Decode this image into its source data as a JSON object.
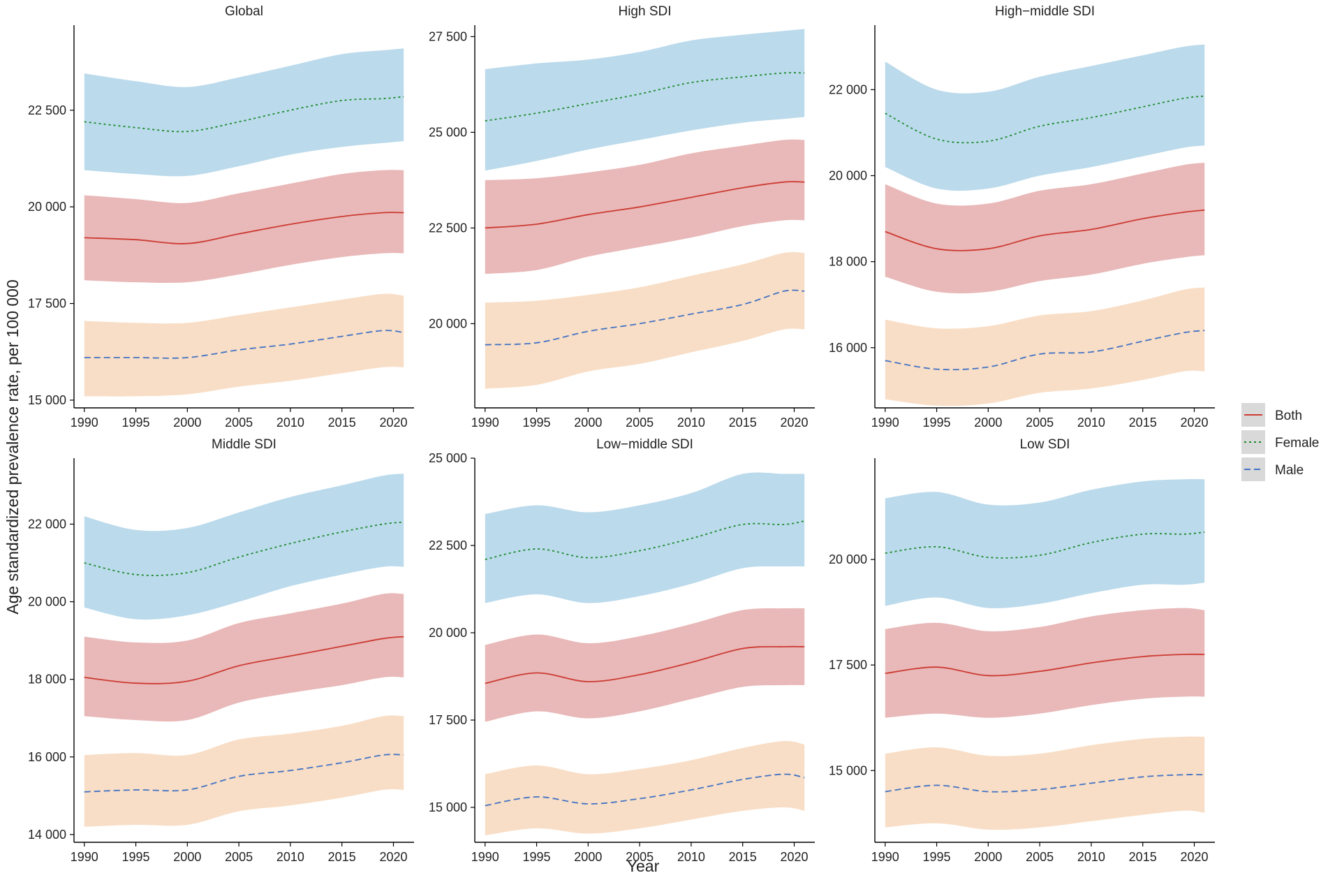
{
  "figure": {
    "y_axis_title": "Age standardized prevalence rate, per 100 000",
    "x_axis_title": "Year"
  },
  "legend": [
    {
      "name": "Both",
      "color": "#cc3b32",
      "dash": "solid"
    },
    {
      "name": "Female",
      "color": "#1a8a2a",
      "dash": "dotted"
    },
    {
      "name": "Male",
      "color": "#4472c4",
      "dash": "dashed"
    }
  ],
  "colors": {
    "both_band": "#e8b4b4",
    "female_band": "#b7d8ea",
    "male_band": "#f8dcc3",
    "axis": "#000000"
  },
  "chart_data": [
    {
      "type": "line",
      "title": "Global",
      "x": [
        1990,
        1995,
        2000,
        2005,
        2010,
        2015,
        2019,
        2021
      ],
      "xticks": [
        1990,
        1995,
        2000,
        2005,
        2010,
        2015,
        2020
      ],
      "xtick_labels": [
        "1990",
        "1995",
        "2000",
        "2005",
        "2010",
        "2015",
        "2020"
      ],
      "xlim": [
        1989,
        2022
      ],
      "ylim": [
        14800,
        24700
      ],
      "yticks": [
        15000,
        17500,
        20000,
        22500
      ],
      "ytick_labels": [
        "15 000",
        "17 500",
        "20 000",
        "22 500"
      ],
      "series": [
        {
          "name": "Female",
          "values": [
            22200,
            22050,
            21950,
            22200,
            22500,
            22750,
            22800,
            22850
          ],
          "lower": [
            20950,
            20850,
            20800,
            21050,
            21350,
            21550,
            21650,
            21700
          ],
          "upper": [
            23450,
            23250,
            23100,
            23350,
            23650,
            23950,
            24050,
            24100
          ]
        },
        {
          "name": "Both",
          "values": [
            19200,
            19150,
            19050,
            19300,
            19550,
            19750,
            19850,
            19850
          ],
          "lower": [
            18100,
            18050,
            18050,
            18250,
            18500,
            18700,
            18800,
            18800
          ],
          "upper": [
            20300,
            20200,
            20100,
            20350,
            20600,
            20850,
            20950,
            20950
          ]
        },
        {
          "name": "Male",
          "values": [
            16100,
            16100,
            16100,
            16300,
            16450,
            16650,
            16800,
            16750
          ],
          "lower": [
            15100,
            15100,
            15150,
            15350,
            15500,
            15700,
            15850,
            15850
          ],
          "upper": [
            17050,
            17000,
            17000,
            17200,
            17400,
            17600,
            17750,
            17700
          ]
        }
      ]
    },
    {
      "type": "line",
      "title": "High SDI",
      "x": [
        1990,
        1995,
        2000,
        2005,
        2010,
        2015,
        2019,
        2021
      ],
      "xticks": [
        1990,
        1995,
        2000,
        2005,
        2010,
        2015,
        2020
      ],
      "xtick_labels": [
        "1990",
        "1995",
        "2000",
        "2005",
        "2010",
        "2015",
        "2020"
      ],
      "xlim": [
        1989,
        2022
      ],
      "ylim": [
        17800,
        27800
      ],
      "yticks": [
        20000,
        22500,
        25000,
        27500
      ],
      "ytick_labels": [
        "20 000",
        "22 500",
        "25 000",
        "27 500"
      ],
      "series": [
        {
          "name": "Female",
          "values": [
            25300,
            25500,
            25750,
            26000,
            26300,
            26450,
            26550,
            26550
          ],
          "lower": [
            24000,
            24250,
            24550,
            24800,
            25050,
            25250,
            25350,
            25400
          ],
          "upper": [
            26650,
            26800,
            26900,
            27100,
            27400,
            27550,
            27650,
            27700
          ]
        },
        {
          "name": "Both",
          "values": [
            22500,
            22600,
            22850,
            23050,
            23300,
            23550,
            23700,
            23700
          ],
          "lower": [
            21300,
            21400,
            21750,
            22000,
            22250,
            22550,
            22700,
            22700
          ],
          "upper": [
            23750,
            23800,
            23950,
            24150,
            24450,
            24650,
            24800,
            24800
          ]
        },
        {
          "name": "Male",
          "values": [
            19450,
            19500,
            19800,
            20000,
            20250,
            20500,
            20850,
            20850
          ],
          "lower": [
            18300,
            18400,
            18750,
            18950,
            19250,
            19550,
            19850,
            19850
          ],
          "upper": [
            20550,
            20600,
            20750,
            20950,
            21250,
            21550,
            21850,
            21850
          ]
        }
      ]
    },
    {
      "type": "line",
      "title": "High−middle SDI",
      "x": [
        1990,
        1995,
        2000,
        2005,
        2010,
        2015,
        2019,
        2021
      ],
      "xticks": [
        1990,
        1995,
        2000,
        2005,
        2010,
        2015,
        2020
      ],
      "xtick_labels": [
        "1990",
        "1995",
        "2000",
        "2005",
        "2010",
        "2015",
        "2020"
      ],
      "xlim": [
        1989,
        2022
      ],
      "ylim": [
        14600,
        23500
      ],
      "yticks": [
        16000,
        18000,
        20000,
        22000
      ],
      "ytick_labels": [
        "16 000",
        "18 000",
        "20 000",
        "22 000"
      ],
      "series": [
        {
          "name": "Female",
          "values": [
            21450,
            20850,
            20800,
            21150,
            21350,
            21600,
            21800,
            21850
          ],
          "lower": [
            20200,
            19700,
            19700,
            20000,
            20200,
            20450,
            20650,
            20700
          ],
          "upper": [
            22650,
            22000,
            21950,
            22300,
            22550,
            22800,
            23000,
            23050
          ]
        },
        {
          "name": "Both",
          "values": [
            18700,
            18300,
            18300,
            18600,
            18750,
            19000,
            19150,
            19200
          ],
          "lower": [
            17650,
            17300,
            17300,
            17550,
            17700,
            17950,
            18100,
            18150
          ],
          "upper": [
            19800,
            19350,
            19350,
            19650,
            19800,
            20050,
            20250,
            20300
          ]
        },
        {
          "name": "Male",
          "values": [
            15700,
            15500,
            15550,
            15850,
            15900,
            16150,
            16350,
            16400
          ],
          "lower": [
            14800,
            14650,
            14700,
            14950,
            15050,
            15250,
            15450,
            15450
          ],
          "upper": [
            16650,
            16450,
            16500,
            16750,
            16850,
            17100,
            17350,
            17400
          ]
        }
      ]
    },
    {
      "type": "line",
      "title": "Middle SDI",
      "x": [
        1990,
        1995,
        2000,
        2005,
        2010,
        2015,
        2019,
        2021
      ],
      "xticks": [
        1990,
        1995,
        2000,
        2005,
        2010,
        2015,
        2020
      ],
      "xtick_labels": [
        "1990",
        "1995",
        "2000",
        "2005",
        "2010",
        "2015",
        "2020"
      ],
      "xlim": [
        1989,
        2022
      ],
      "ylim": [
        13800,
        23700
      ],
      "yticks": [
        14000,
        16000,
        18000,
        20000,
        22000
      ],
      "ytick_labels": [
        "14 000",
        "16 000",
        "18 000",
        "20 000",
        "22 000"
      ],
      "series": [
        {
          "name": "Female",
          "values": [
            21000,
            20700,
            20750,
            21150,
            21500,
            21800,
            22000,
            22050
          ],
          "lower": [
            19850,
            19550,
            19650,
            20000,
            20400,
            20700,
            20900,
            20900
          ],
          "upper": [
            22200,
            21850,
            21900,
            22300,
            22700,
            23000,
            23250,
            23300
          ]
        },
        {
          "name": "Both",
          "values": [
            18050,
            17900,
            17950,
            18350,
            18600,
            18850,
            19050,
            19100
          ],
          "lower": [
            17050,
            16950,
            16950,
            17400,
            17650,
            17850,
            18050,
            18050
          ],
          "upper": [
            19100,
            18950,
            19000,
            19450,
            19700,
            19950,
            20200,
            20200
          ]
        },
        {
          "name": "Male",
          "values": [
            15100,
            15150,
            15150,
            15500,
            15650,
            15850,
            16050,
            16050
          ],
          "lower": [
            14200,
            14250,
            14250,
            14600,
            14750,
            14950,
            15150,
            15150
          ],
          "upper": [
            16050,
            16100,
            16050,
            16450,
            16600,
            16800,
            17050,
            17050
          ]
        }
      ]
    },
    {
      "type": "line",
      "title": "Low−middle SDI",
      "x": [
        1990,
        1995,
        2000,
        2005,
        2010,
        2015,
        2019,
        2021
      ],
      "xticks": [
        1990,
        1995,
        2000,
        2005,
        2010,
        2015,
        2020
      ],
      "xtick_labels": [
        "1990",
        "1995",
        "2000",
        "2005",
        "2010",
        "2015",
        "2020"
      ],
      "xlim": [
        1989,
        2022
      ],
      "ylim": [
        14000,
        25000
      ],
      "yticks": [
        15000,
        17500,
        20000,
        22500,
        25000
      ],
      "ytick_labels": [
        "15 000",
        "17 500",
        "20 000",
        "22 500",
        "25 000"
      ],
      "series": [
        {
          "name": "Female",
          "values": [
            22100,
            22400,
            22150,
            22350,
            22700,
            23100,
            23100,
            23200
          ],
          "lower": [
            20850,
            21100,
            20850,
            21050,
            21400,
            21850,
            21900,
            21900
          ],
          "upper": [
            23400,
            23650,
            23450,
            23650,
            24000,
            24550,
            24550,
            24550
          ]
        },
        {
          "name": "Both",
          "values": [
            18550,
            18850,
            18600,
            18800,
            19150,
            19550,
            19600,
            19600
          ],
          "lower": [
            17450,
            17750,
            17550,
            17750,
            18100,
            18450,
            18500,
            18500
          ],
          "upper": [
            19650,
            19950,
            19700,
            19900,
            20250,
            20650,
            20700,
            20700
          ]
        },
        {
          "name": "Male",
          "values": [
            15050,
            15300,
            15100,
            15250,
            15500,
            15800,
            15950,
            15850
          ],
          "lower": [
            14200,
            14400,
            14250,
            14400,
            14650,
            14900,
            15000,
            14900
          ],
          "upper": [
            15950,
            16200,
            15950,
            16100,
            16350,
            16700,
            16900,
            16800
          ]
        }
      ]
    },
    {
      "type": "line",
      "title": "Low SDI",
      "x": [
        1990,
        1995,
        2000,
        2005,
        2010,
        2015,
        2019,
        2021
      ],
      "xticks": [
        1990,
        1995,
        2000,
        2005,
        2010,
        2015,
        2020
      ],
      "xtick_labels": [
        "1990",
        "1995",
        "2000",
        "2005",
        "2010",
        "2015",
        "2020"
      ],
      "xlim": [
        1989,
        2022
      ],
      "ylim": [
        13300,
        22400
      ],
      "yticks": [
        15000,
        17500,
        20000
      ],
      "ytick_labels": [
        "15 000",
        "17 500",
        "20 000"
      ],
      "series": [
        {
          "name": "Female",
          "values": [
            20150,
            20300,
            20050,
            20100,
            20400,
            20600,
            20600,
            20650
          ],
          "lower": [
            18900,
            19100,
            18850,
            18950,
            19200,
            19400,
            19400,
            19450
          ],
          "upper": [
            21450,
            21600,
            21300,
            21350,
            21650,
            21850,
            21900,
            21900
          ]
        },
        {
          "name": "Both",
          "values": [
            17300,
            17450,
            17250,
            17350,
            17550,
            17700,
            17750,
            17750
          ],
          "lower": [
            16250,
            16350,
            16250,
            16350,
            16550,
            16700,
            16750,
            16750
          ],
          "upper": [
            18350,
            18500,
            18300,
            18400,
            18650,
            18800,
            18850,
            18800
          ]
        },
        {
          "name": "Male",
          "values": [
            14500,
            14650,
            14500,
            14550,
            14700,
            14850,
            14900,
            14900
          ],
          "lower": [
            13650,
            13750,
            13600,
            13650,
            13800,
            13950,
            14050,
            14000
          ],
          "upper": [
            15400,
            15550,
            15350,
            15400,
            15600,
            15750,
            15800,
            15800
          ]
        }
      ]
    }
  ]
}
